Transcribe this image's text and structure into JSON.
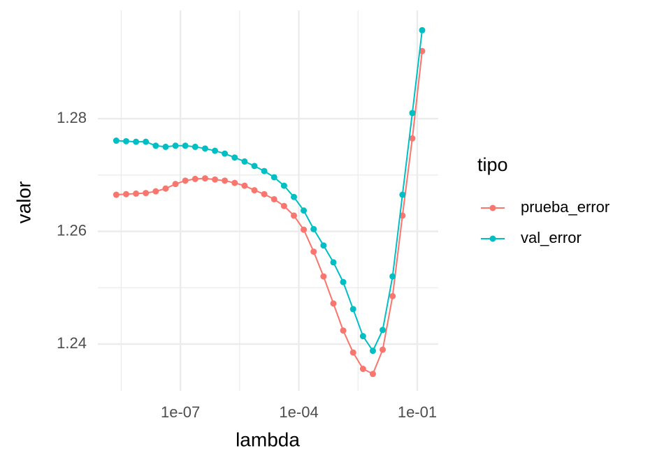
{
  "chart_data": {
    "type": "line",
    "x_label": "lambda",
    "y_label": "valor",
    "legend_title": "tipo",
    "log_x": true,
    "grid": true,
    "x": [
      2.37e-09,
      4.22e-09,
      7.5e-09,
      1.33e-08,
      2.37e-08,
      4.22e-08,
      7.5e-08,
      1.33e-07,
      2.37e-07,
      4.22e-07,
      7.5e-07,
      1.33e-06,
      2.37e-06,
      4.22e-06,
      7.5e-06,
      1.33e-05,
      2.37e-05,
      4.22e-05,
      7.5e-05,
      0.000133,
      0.000237,
      0.000422,
      0.00075,
      0.00133,
      0.00237,
      0.00422,
      0.0075,
      0.0133,
      0.0237,
      0.0422,
      0.075,
      0.133
    ],
    "series": [
      {
        "name": "prueba_error",
        "color": "#F8766D",
        "values": [
          1.2665,
          1.2666,
          1.2667,
          1.2668,
          1.2671,
          1.2676,
          1.2684,
          1.269,
          1.2693,
          1.2694,
          1.2692,
          1.269,
          1.2686,
          1.2681,
          1.2673,
          1.2666,
          1.2657,
          1.2645,
          1.2628,
          1.2603,
          1.2564,
          1.252,
          1.2472,
          1.2424,
          1.2385,
          1.2356,
          1.2347,
          1.239,
          1.2485,
          1.2628,
          1.2765,
          1.292
        ]
      },
      {
        "name": "val_error",
        "color": "#00BFC4",
        "values": [
          1.2761,
          1.276,
          1.2759,
          1.2759,
          1.2752,
          1.275,
          1.2752,
          1.2752,
          1.275,
          1.2747,
          1.2743,
          1.2738,
          1.2731,
          1.2724,
          1.2716,
          1.2707,
          1.2696,
          1.2681,
          1.2661,
          1.2637,
          1.2604,
          1.2575,
          1.2545,
          1.251,
          1.2462,
          1.2414,
          1.2388,
          1.2425,
          1.252,
          1.2665,
          1.281,
          1.2957
        ]
      }
    ],
    "xlim": [
      8.1e-10,
      0.34
    ],
    "xticks": [
      {
        "value": 1e-07,
        "label": "1e-07"
      },
      {
        "value": 0.0001,
        "label": "1e-04"
      },
      {
        "value": 0.1,
        "label": "1e-01"
      }
    ],
    "xminorticks": [
      3.162e-09,
      3.162e-06,
      0.003162
    ],
    "ylim": [
      1.2317,
      1.2992
    ],
    "yticks": [
      1.24,
      1.26,
      1.28
    ],
    "yminorticks": [
      1.25,
      1.27
    ]
  }
}
